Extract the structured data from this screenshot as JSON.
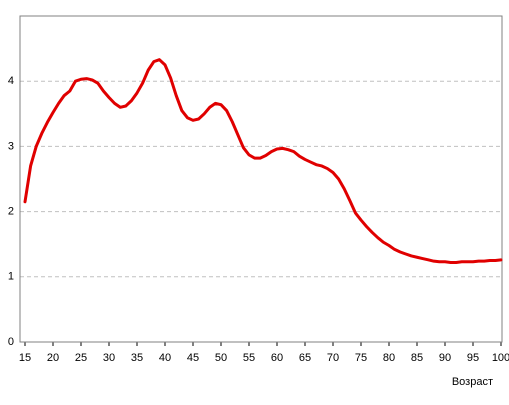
{
  "chart_data": {
    "type": "line",
    "x": [
      15,
      16,
      17,
      18,
      19,
      20,
      21,
      22,
      23,
      24,
      25,
      26,
      27,
      28,
      29,
      30,
      31,
      32,
      33,
      34,
      35,
      36,
      37,
      38,
      39,
      40,
      41,
      42,
      43,
      44,
      45,
      46,
      47,
      48,
      49,
      50,
      51,
      52,
      53,
      54,
      55,
      56,
      57,
      58,
      59,
      60,
      61,
      62,
      63,
      64,
      65,
      66,
      67,
      68,
      69,
      70,
      71,
      72,
      73,
      74,
      75,
      76,
      77,
      78,
      79,
      80,
      81,
      82,
      83,
      84,
      85,
      86,
      87,
      88,
      89,
      90,
      91,
      92,
      93,
      94,
      95,
      96,
      97,
      98,
      99,
      100
    ],
    "values": [
      2.15,
      2.7,
      3.0,
      3.2,
      3.37,
      3.52,
      3.66,
      3.78,
      3.85,
      4.0,
      4.03,
      4.04,
      4.02,
      3.97,
      3.85,
      3.75,
      3.66,
      3.6,
      3.62,
      3.7,
      3.82,
      3.97,
      4.17,
      4.3,
      4.33,
      4.25,
      4.05,
      3.78,
      3.55,
      3.44,
      3.4,
      3.42,
      3.5,
      3.6,
      3.66,
      3.64,
      3.55,
      3.38,
      3.18,
      2.98,
      2.87,
      2.82,
      2.82,
      2.86,
      2.92,
      2.96,
      2.97,
      2.95,
      2.92,
      2.85,
      2.8,
      2.76,
      2.72,
      2.7,
      2.66,
      2.6,
      2.5,
      2.35,
      2.17,
      1.98,
      1.87,
      1.77,
      1.68,
      1.6,
      1.53,
      1.48,
      1.42,
      1.38,
      1.35,
      1.32,
      1.3,
      1.28,
      1.26,
      1.24,
      1.23,
      1.23,
      1.22,
      1.22,
      1.23,
      1.23,
      1.23,
      1.24,
      1.24,
      1.25,
      1.25,
      1.26
    ],
    "color": "#e00000",
    "x_label": "Возраст",
    "xlim": [
      15,
      100
    ],
    "xticks": [
      15,
      20,
      25,
      30,
      35,
      40,
      45,
      50,
      55,
      60,
      65,
      70,
      75,
      80,
      85,
      90,
      95,
      100
    ],
    "ylim": [
      0,
      5
    ],
    "yticks": [
      0,
      1,
      2,
      3,
      4
    ],
    "grid": true
  }
}
